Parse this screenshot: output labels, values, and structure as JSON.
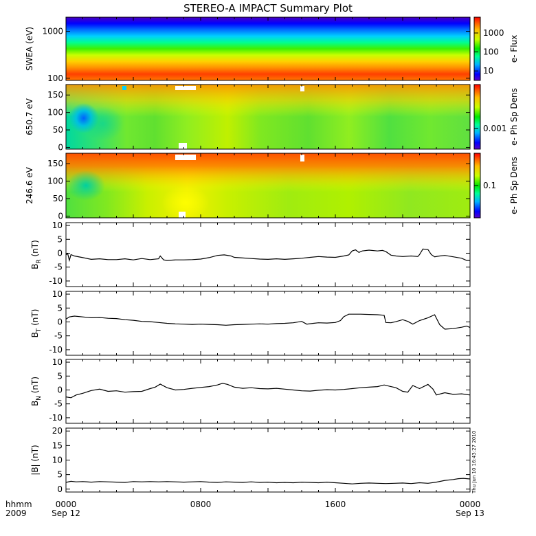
{
  "chart_data": {
    "title": "STEREO-A IMPACT Summary Plot",
    "time_axis": {
      "corner_labels": [
        "hhmm",
        "2009"
      ],
      "ticks": [
        {
          "hhmm": "0000",
          "date": "Sep 12",
          "hour": 0
        },
        {
          "hhmm": "0800",
          "date": "",
          "hour": 8
        },
        {
          "hhmm": "1600",
          "date": "",
          "hour": 16
        },
        {
          "hhmm": "0000",
          "date": "Sep 13",
          "hour": 24
        }
      ],
      "range_hours": [
        0,
        24
      ]
    },
    "timestamp": "Thu Jun 10 16:43:27 2010",
    "spectrograms": [
      {
        "type": "heatmap",
        "ylabel": "SWEA (eV)",
        "scale": "log",
        "yticks": [
          {
            "label": "1000",
            "value": 1000
          },
          {
            "label": "100",
            "value": 100
          }
        ],
        "ylim": [
          90,
          2000
        ],
        "colorbar_label": "e- Flux",
        "colorbar_ticks": [
          {
            "label": "1000",
            "frac": 0.25
          },
          {
            "label": "100",
            "frac": 0.55
          },
          {
            "label": "10",
            "frac": 0.85
          }
        ]
      },
      {
        "type": "heatmap",
        "ylabel": "650.7 eV",
        "scale": "linear",
        "yticks": [
          {
            "label": "150",
            "value": 150
          },
          {
            "label": "100",
            "value": 100
          },
          {
            "label": "50",
            "value": 50
          },
          {
            "label": "0",
            "value": 0
          }
        ],
        "ylim": [
          -5,
          180
        ],
        "colorbar_label": "e- Ph Sp Dens",
        "colorbar_ticks": [
          {
            "label": "0.001",
            "frac": 0.68
          }
        ]
      },
      {
        "type": "heatmap",
        "ylabel": "246.6 eV",
        "scale": "linear",
        "yticks": [
          {
            "label": "150",
            "value": 150
          },
          {
            "label": "100",
            "value": 100
          },
          {
            "label": "50",
            "value": 50
          },
          {
            "label": "0",
            "value": 0
          }
        ],
        "ylim": [
          -5,
          180
        ],
        "colorbar_label": "e- Ph Sp Dens",
        "colorbar_ticks": [
          {
            "label": "0.1",
            "frac": 0.5
          }
        ]
      }
    ],
    "line_panels": [
      {
        "type": "line",
        "ylabel_main": "B",
        "ylabel_sub": "R",
        "ylabel_unit": " (nT)",
        "ylim": [
          -12,
          11
        ],
        "yticks": [
          10,
          5,
          0,
          -5,
          -10
        ],
        "points": [
          [
            0,
            -0.6
          ],
          [
            0.1,
            -0.1
          ],
          [
            0.2,
            -2.6
          ],
          [
            0.3,
            -0.5
          ],
          [
            0.5,
            -1.0
          ],
          [
            1.0,
            -1.6
          ],
          [
            1.5,
            -2.2
          ],
          [
            2.0,
            -2.0
          ],
          [
            2.5,
            -2.3
          ],
          [
            3.0,
            -2.3
          ],
          [
            3.5,
            -2.0
          ],
          [
            4.0,
            -2.4
          ],
          [
            4.5,
            -1.9
          ],
          [
            5.0,
            -2.3
          ],
          [
            5.5,
            -2.0
          ],
          [
            5.6,
            -1.0
          ],
          [
            5.8,
            -2.4
          ],
          [
            6.0,
            -2.6
          ],
          [
            6.5,
            -2.4
          ],
          [
            7.0,
            -2.4
          ],
          [
            7.5,
            -2.3
          ],
          [
            8.0,
            -2.1
          ],
          [
            8.5,
            -1.6
          ],
          [
            9.0,
            -0.8
          ],
          [
            9.4,
            -0.6
          ],
          [
            9.8,
            -1.0
          ],
          [
            10.0,
            -1.5
          ],
          [
            10.5,
            -1.7
          ],
          [
            11.0,
            -1.9
          ],
          [
            11.5,
            -2.1
          ],
          [
            12.0,
            -2.2
          ],
          [
            12.5,
            -2.0
          ],
          [
            13.0,
            -2.2
          ],
          [
            13.5,
            -2.0
          ],
          [
            14.0,
            -1.8
          ],
          [
            14.5,
            -1.5
          ],
          [
            15.0,
            -1.2
          ],
          [
            15.5,
            -1.4
          ],
          [
            16.0,
            -1.5
          ],
          [
            16.5,
            -1.0
          ],
          [
            16.8,
            -0.6
          ],
          [
            17.0,
            0.8
          ],
          [
            17.2,
            1.2
          ],
          [
            17.4,
            0.3
          ],
          [
            17.6,
            0.8
          ],
          [
            18.0,
            1.1
          ],
          [
            18.5,
            0.8
          ],
          [
            18.8,
            1.0
          ],
          [
            19.0,
            0.6
          ],
          [
            19.3,
            -0.7
          ],
          [
            19.6,
            -1.0
          ],
          [
            20.0,
            -1.2
          ],
          [
            20.5,
            -1.0
          ],
          [
            20.9,
            -1.2
          ],
          [
            21.0,
            -0.5
          ],
          [
            21.2,
            1.5
          ],
          [
            21.5,
            1.3
          ],
          [
            21.7,
            -0.5
          ],
          [
            21.9,
            -1.3
          ],
          [
            22.2,
            -1.0
          ],
          [
            22.5,
            -0.8
          ],
          [
            23.0,
            -1.3
          ],
          [
            23.5,
            -1.8
          ],
          [
            23.8,
            -2.6
          ],
          [
            24.0,
            -2.6
          ]
        ]
      },
      {
        "type": "line",
        "ylabel_main": "B",
        "ylabel_sub": "T",
        "ylabel_unit": " (nT)",
        "ylim": [
          -12,
          11
        ],
        "yticks": [
          10,
          5,
          0,
          -5,
          -10
        ],
        "points": [
          [
            0,
            1.0
          ],
          [
            0.2,
            1.8
          ],
          [
            0.5,
            2.1
          ],
          [
            1.0,
            1.8
          ],
          [
            1.5,
            1.5
          ],
          [
            2.0,
            1.6
          ],
          [
            2.5,
            1.3
          ],
          [
            3.0,
            1.2
          ],
          [
            3.5,
            0.8
          ],
          [
            4.0,
            0.6
          ],
          [
            4.5,
            0.2
          ],
          [
            5.0,
            0.1
          ],
          [
            5.5,
            -0.2
          ],
          [
            6.0,
            -0.5
          ],
          [
            6.5,
            -0.7
          ],
          [
            7.0,
            -0.8
          ],
          [
            7.5,
            -0.9
          ],
          [
            8.0,
            -0.8
          ],
          [
            8.5,
            -0.9
          ],
          [
            9.0,
            -1.0
          ],
          [
            9.5,
            -1.2
          ],
          [
            10.0,
            -1.0
          ],
          [
            10.5,
            -0.9
          ],
          [
            11.0,
            -0.8
          ],
          [
            11.5,
            -0.7
          ],
          [
            12.0,
            -0.8
          ],
          [
            12.5,
            -0.6
          ],
          [
            13.0,
            -0.5
          ],
          [
            13.5,
            -0.3
          ],
          [
            14.0,
            0.2
          ],
          [
            14.3,
            -0.8
          ],
          [
            14.7,
            -0.5
          ],
          [
            15.0,
            -0.3
          ],
          [
            15.5,
            -0.4
          ],
          [
            16.0,
            -0.2
          ],
          [
            16.3,
            0.5
          ],
          [
            16.5,
            1.9
          ],
          [
            16.8,
            2.8
          ],
          [
            17.5,
            2.8
          ],
          [
            18.0,
            2.7
          ],
          [
            18.5,
            2.6
          ],
          [
            18.9,
            2.4
          ],
          [
            19.0,
            -0.2
          ],
          [
            19.3,
            -0.3
          ],
          [
            19.6,
            0.1
          ],
          [
            20.0,
            0.8
          ],
          [
            20.3,
            0.2
          ],
          [
            20.6,
            -0.8
          ],
          [
            21.0,
            0.5
          ],
          [
            21.5,
            1.5
          ],
          [
            21.9,
            2.6
          ],
          [
            22.2,
            -1.0
          ],
          [
            22.5,
            -2.6
          ],
          [
            23.0,
            -2.4
          ],
          [
            23.5,
            -1.9
          ],
          [
            23.8,
            -1.5
          ],
          [
            24.0,
            -2.0
          ]
        ]
      },
      {
        "type": "line",
        "ylabel_main": "B",
        "ylabel_sub": "N",
        "ylabel_unit": " (nT)",
        "ylim": [
          -12,
          11
        ],
        "yticks": [
          10,
          5,
          0,
          -5,
          -10
        ],
        "points": [
          [
            0,
            -2.5
          ],
          [
            0.3,
            -2.8
          ],
          [
            0.6,
            -1.8
          ],
          [
            1.0,
            -1.2
          ],
          [
            1.5,
            -0.2
          ],
          [
            2.0,
            0.3
          ],
          [
            2.5,
            -0.5
          ],
          [
            3.0,
            -0.3
          ],
          [
            3.5,
            -0.8
          ],
          [
            4.0,
            -0.6
          ],
          [
            4.5,
            -0.5
          ],
          [
            5.0,
            0.5
          ],
          [
            5.3,
            1.0
          ],
          [
            5.6,
            2.1
          ],
          [
            6.0,
            0.8
          ],
          [
            6.5,
            0.0
          ],
          [
            7.0,
            0.2
          ],
          [
            7.5,
            0.6
          ],
          [
            8.0,
            0.9
          ],
          [
            8.5,
            1.2
          ],
          [
            9.0,
            1.8
          ],
          [
            9.3,
            2.4
          ],
          [
            9.6,
            2.0
          ],
          [
            10.0,
            1.0
          ],
          [
            10.5,
            0.6
          ],
          [
            11.0,
            0.8
          ],
          [
            11.5,
            0.5
          ],
          [
            12.0,
            0.4
          ],
          [
            12.5,
            0.6
          ],
          [
            13.0,
            0.3
          ],
          [
            13.5,
            0.0
          ],
          [
            14.0,
            -0.3
          ],
          [
            14.5,
            -0.4
          ],
          [
            15.0,
            -0.1
          ],
          [
            15.5,
            0.1
          ],
          [
            16.0,
            0.0
          ],
          [
            16.5,
            0.2
          ],
          [
            17.0,
            0.5
          ],
          [
            17.5,
            0.8
          ],
          [
            18.0,
            1.0
          ],
          [
            18.5,
            1.2
          ],
          [
            18.9,
            1.8
          ],
          [
            19.3,
            1.2
          ],
          [
            19.6,
            0.8
          ],
          [
            20.0,
            -0.5
          ],
          [
            20.3,
            -0.8
          ],
          [
            20.6,
            1.6
          ],
          [
            21.0,
            0.5
          ],
          [
            21.5,
            2.0
          ],
          [
            21.8,
            0.3
          ],
          [
            22.0,
            -1.8
          ],
          [
            22.5,
            -1.0
          ],
          [
            23.0,
            -1.6
          ],
          [
            23.5,
            -1.4
          ],
          [
            24.0,
            -1.8
          ]
        ]
      },
      {
        "type": "line",
        "ylabel_main": "|B|",
        "ylabel_sub": "",
        "ylabel_unit": " (nT)",
        "ylim": [
          -1,
          21
        ],
        "yticks": [
          20,
          15,
          10,
          5,
          0
        ],
        "points": [
          [
            0,
            2.3
          ],
          [
            0.3,
            2.7
          ],
          [
            0.6,
            2.5
          ],
          [
            1.0,
            2.6
          ],
          [
            1.5,
            2.4
          ],
          [
            2.0,
            2.6
          ],
          [
            2.5,
            2.5
          ],
          [
            3.0,
            2.4
          ],
          [
            3.5,
            2.3
          ],
          [
            4.0,
            2.6
          ],
          [
            4.5,
            2.5
          ],
          [
            5.0,
            2.6
          ],
          [
            5.5,
            2.5
          ],
          [
            6.0,
            2.6
          ],
          [
            6.5,
            2.5
          ],
          [
            7.0,
            2.4
          ],
          [
            7.5,
            2.5
          ],
          [
            8.0,
            2.6
          ],
          [
            8.5,
            2.4
          ],
          [
            9.0,
            2.3
          ],
          [
            9.5,
            2.5
          ],
          [
            10.0,
            2.4
          ],
          [
            10.5,
            2.3
          ],
          [
            11.0,
            2.5
          ],
          [
            11.5,
            2.3
          ],
          [
            12.0,
            2.4
          ],
          [
            12.5,
            2.2
          ],
          [
            13.0,
            2.3
          ],
          [
            13.5,
            2.2
          ],
          [
            14.0,
            2.4
          ],
          [
            14.5,
            2.3
          ],
          [
            15.0,
            2.2
          ],
          [
            15.5,
            2.4
          ],
          [
            16.0,
            2.2
          ],
          [
            16.5,
            2.0
          ],
          [
            17.0,
            1.8
          ],
          [
            17.5,
            2.0
          ],
          [
            18.0,
            2.1
          ],
          [
            18.5,
            2.0
          ],
          [
            19.0,
            1.9
          ],
          [
            19.5,
            2.0
          ],
          [
            20.0,
            2.1
          ],
          [
            20.5,
            1.9
          ],
          [
            21.0,
            2.2
          ],
          [
            21.5,
            2.0
          ],
          [
            22.0,
            2.4
          ],
          [
            22.5,
            3.0
          ],
          [
            23.0,
            3.3
          ],
          [
            23.3,
            3.6
          ],
          [
            23.6,
            3.7
          ],
          [
            24.0,
            3.5
          ]
        ]
      }
    ]
  }
}
